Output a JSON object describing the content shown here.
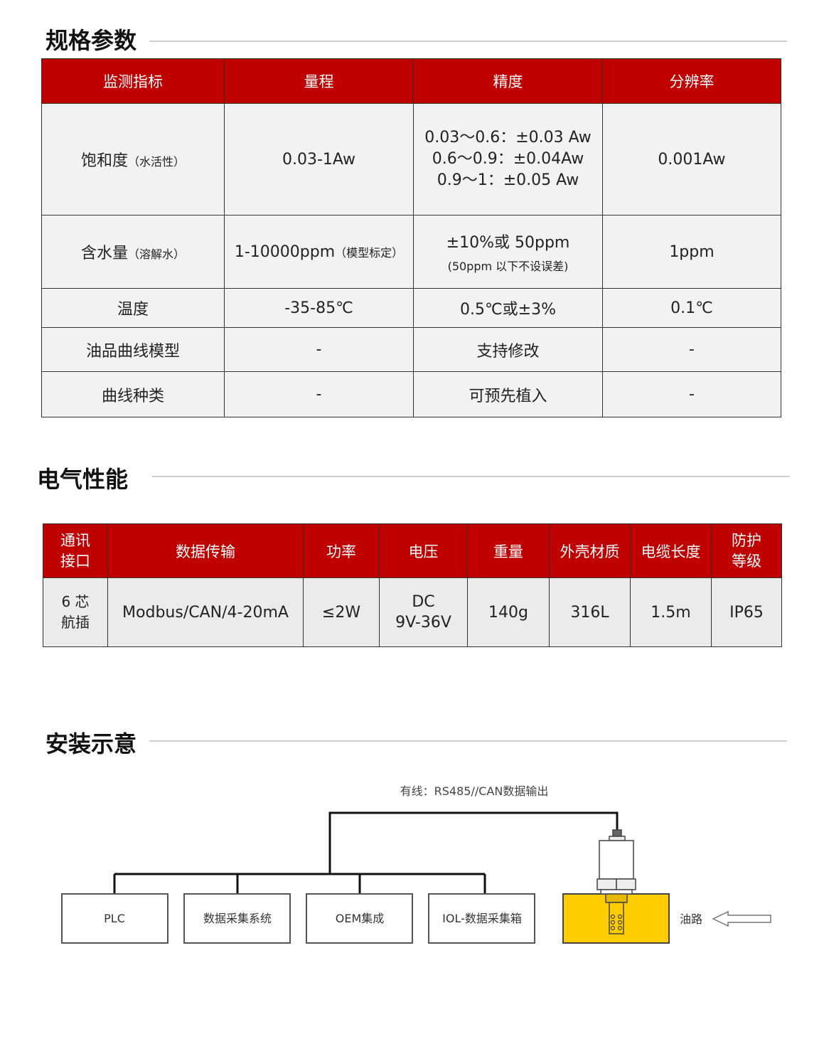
{
  "sections": {
    "spec": "规格参数",
    "electrical": "电气性能",
    "install": "安装示意"
  },
  "spec_table": {
    "headers": [
      "监测指标",
      "量程",
      "精度",
      "分辨率"
    ],
    "rows": [
      {
        "name": "饱和度",
        "name_note": "（水活性）",
        "range": "0.03-1Aw",
        "range_note": "",
        "accuracy": [
          "0.03～0.6：±0.03 Aw",
          "0.6～0.9：±0.04Aw",
          "0.9～1：±0.05 Aw"
        ],
        "resolution": "0.001Aw"
      },
      {
        "name": "含水量",
        "name_note": "（溶解水）",
        "range": "1-10000ppm",
        "range_note": "（模型标定）",
        "accuracy": [
          "±10%或 50ppm",
          "(50ppm 以下不设误差)"
        ],
        "resolution": "1ppm"
      },
      {
        "name": "温度",
        "name_note": "",
        "range": "-35-85℃",
        "range_note": "",
        "accuracy": [
          "0.5℃或±3%"
        ],
        "resolution": "0.1℃"
      },
      {
        "name": "油品曲线模型",
        "name_note": "",
        "range": "-",
        "range_note": "",
        "accuracy": [
          "支持修改"
        ],
        "resolution": "-"
      },
      {
        "name": "曲线种类",
        "name_note": "",
        "range": "-",
        "range_note": "",
        "accuracy": [
          "可预先植入"
        ],
        "resolution": "-"
      }
    ]
  },
  "elec_table": {
    "headers": [
      "通讯\n接口",
      "数据传输",
      "功率",
      "电压",
      "重量",
      "外壳材质",
      "电缆长度",
      "防护\n等级"
    ],
    "values": [
      "6 芯\n航插",
      "Modbus/CAN/4-20mA",
      "≤2W",
      "DC\n9V-36V",
      "140g",
      "316L",
      "1.5m",
      "IP65"
    ]
  },
  "diagram": {
    "wire_label": "有线：RS485//CAN数据输出",
    "boxes": [
      "PLC",
      "数据采集系统",
      "OEM集成",
      "IOL-数据采集箱"
    ],
    "flow_label": "油路",
    "colors": {
      "pipe": "#ffcc00",
      "header": "#c00000"
    }
  }
}
